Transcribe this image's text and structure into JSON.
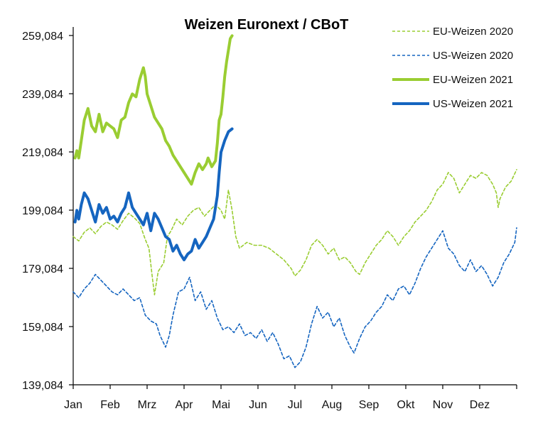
{
  "chart_data": {
    "type": "line",
    "title": "Weizen Euronext / CBoT",
    "xlabel": "",
    "ylabel": "",
    "x_ticks": [
      "Jan",
      "Feb",
      "Mrz",
      "Apr",
      "Mai",
      "Jun",
      "Jul",
      "Aug",
      "Sep",
      "Okt",
      "Nov",
      "Dez"
    ],
    "x_range": [
      0,
      12
    ],
    "y_ticks": [
      "259,084",
      "239,084",
      "219,084",
      "199,084",
      "179,084",
      "159,084",
      "139,084"
    ],
    "ylim": [
      139.084,
      263
    ],
    "grid": false,
    "legend_position": "top-right",
    "series": [
      {
        "name": "EU-Weizen 2020",
        "color": "#9acd32",
        "style": "dashed",
        "width": 1.6,
        "points": [
          [
            0.0,
            190.0
          ],
          [
            0.15,
            188.5
          ],
          [
            0.3,
            191.5
          ],
          [
            0.45,
            193.0
          ],
          [
            0.6,
            191.0
          ],
          [
            0.75,
            193.5
          ],
          [
            0.9,
            195.0
          ],
          [
            1.05,
            194.0
          ],
          [
            1.2,
            192.5
          ],
          [
            1.35,
            195.5
          ],
          [
            1.5,
            198.0
          ],
          [
            1.65,
            196.5
          ],
          [
            1.8,
            194.5
          ],
          [
            1.95,
            189.0
          ],
          [
            2.05,
            186.0
          ],
          [
            2.15,
            175.0
          ],
          [
            2.2,
            170.0
          ],
          [
            2.3,
            178.0
          ],
          [
            2.45,
            181.0
          ],
          [
            2.55,
            190.0
          ],
          [
            2.65,
            192.0
          ],
          [
            2.8,
            196.0
          ],
          [
            2.95,
            194.0
          ],
          [
            3.1,
            197.0
          ],
          [
            3.25,
            199.0
          ],
          [
            3.4,
            200.0
          ],
          [
            3.55,
            197.0
          ],
          [
            3.7,
            199.0
          ],
          [
            3.85,
            201.0
          ],
          [
            4.0,
            199.0
          ],
          [
            4.1,
            196.0
          ],
          [
            4.2,
            206.0
          ],
          [
            4.3,
            199.0
          ],
          [
            4.4,
            190.0
          ],
          [
            4.5,
            186.0
          ],
          [
            4.7,
            188.0
          ],
          [
            4.9,
            187.0
          ],
          [
            5.1,
            187.0
          ],
          [
            5.3,
            186.0
          ],
          [
            5.5,
            184.0
          ],
          [
            5.7,
            182.0
          ],
          [
            5.9,
            179.0
          ],
          [
            6.0,
            176.5
          ],
          [
            6.15,
            178.5
          ],
          [
            6.3,
            182.0
          ],
          [
            6.45,
            187.0
          ],
          [
            6.6,
            189.0
          ],
          [
            6.75,
            187.0
          ],
          [
            6.9,
            184.0
          ],
          [
            7.05,
            186.0
          ],
          [
            7.2,
            182.0
          ],
          [
            7.35,
            183.0
          ],
          [
            7.5,
            181.0
          ],
          [
            7.65,
            178.0
          ],
          [
            7.75,
            177.0
          ],
          [
            7.9,
            181.0
          ],
          [
            8.05,
            184.0
          ],
          [
            8.2,
            187.0
          ],
          [
            8.35,
            189.0
          ],
          [
            8.5,
            192.0
          ],
          [
            8.65,
            190.0
          ],
          [
            8.8,
            187.0
          ],
          [
            8.95,
            190.0
          ],
          [
            9.1,
            192.0
          ],
          [
            9.25,
            195.0
          ],
          [
            9.4,
            197.0
          ],
          [
            9.55,
            199.0
          ],
          [
            9.7,
            202.0
          ],
          [
            9.85,
            206.0
          ],
          [
            10.0,
            208.0
          ],
          [
            10.15,
            212.0
          ],
          [
            10.3,
            210.0
          ],
          [
            10.45,
            205.0
          ],
          [
            10.6,
            208.0
          ],
          [
            10.75,
            211.0
          ],
          [
            10.9,
            210.0
          ],
          [
            11.05,
            212.0
          ],
          [
            11.2,
            211.0
          ],
          [
            11.35,
            208.0
          ],
          [
            11.45,
            205.0
          ],
          [
            11.5,
            200.0
          ],
          [
            11.55,
            203.0
          ],
          [
            11.7,
            207.0
          ],
          [
            11.85,
            209.0
          ],
          [
            12.0,
            213.0
          ]
        ]
      },
      {
        "name": "US-Weizen 2020",
        "color": "#1565c0",
        "style": "dashed",
        "width": 1.6,
        "points": [
          [
            0.0,
            171.0
          ],
          [
            0.15,
            169.0
          ],
          [
            0.3,
            172.0
          ],
          [
            0.45,
            174.0
          ],
          [
            0.6,
            177.0
          ],
          [
            0.75,
            175.0
          ],
          [
            0.9,
            173.0
          ],
          [
            1.05,
            171.0
          ],
          [
            1.2,
            170.0
          ],
          [
            1.35,
            172.0
          ],
          [
            1.5,
            170.0
          ],
          [
            1.65,
            168.0
          ],
          [
            1.8,
            169.0
          ],
          [
            1.95,
            163.0
          ],
          [
            2.1,
            161.0
          ],
          [
            2.25,
            160.0
          ],
          [
            2.35,
            156.0
          ],
          [
            2.5,
            152.0
          ],
          [
            2.6,
            156.0
          ],
          [
            2.7,
            163.0
          ],
          [
            2.85,
            171.0
          ],
          [
            3.0,
            172.0
          ],
          [
            3.15,
            176.0
          ],
          [
            3.3,
            168.0
          ],
          [
            3.45,
            171.0
          ],
          [
            3.6,
            165.0
          ],
          [
            3.75,
            168.0
          ],
          [
            3.9,
            162.0
          ],
          [
            4.05,
            158.0
          ],
          [
            4.2,
            159.0
          ],
          [
            4.35,
            157.0
          ],
          [
            4.5,
            160.0
          ],
          [
            4.65,
            156.0
          ],
          [
            4.8,
            157.0
          ],
          [
            4.95,
            155.0
          ],
          [
            5.1,
            158.0
          ],
          [
            5.25,
            154.0
          ],
          [
            5.4,
            157.0
          ],
          [
            5.55,
            153.0
          ],
          [
            5.7,
            148.0
          ],
          [
            5.85,
            149.0
          ],
          [
            6.0,
            145.0
          ],
          [
            6.15,
            147.0
          ],
          [
            6.3,
            152.0
          ],
          [
            6.45,
            160.0
          ],
          [
            6.6,
            166.0
          ],
          [
            6.75,
            162.0
          ],
          [
            6.9,
            164.0
          ],
          [
            7.05,
            159.0
          ],
          [
            7.2,
            162.0
          ],
          [
            7.35,
            156.0
          ],
          [
            7.5,
            152.0
          ],
          [
            7.6,
            150.0
          ],
          [
            7.75,
            155.0
          ],
          [
            7.9,
            159.0
          ],
          [
            8.05,
            161.0
          ],
          [
            8.2,
            164.0
          ],
          [
            8.35,
            166.0
          ],
          [
            8.5,
            170.0
          ],
          [
            8.65,
            168.0
          ],
          [
            8.8,
            172.0
          ],
          [
            8.95,
            173.0
          ],
          [
            9.1,
            170.0
          ],
          [
            9.25,
            174.0
          ],
          [
            9.4,
            179.0
          ],
          [
            9.55,
            183.0
          ],
          [
            9.7,
            186.0
          ],
          [
            9.85,
            189.0
          ],
          [
            10.0,
            192.0
          ],
          [
            10.15,
            186.0
          ],
          [
            10.3,
            184.0
          ],
          [
            10.45,
            180.0
          ],
          [
            10.6,
            178.0
          ],
          [
            10.75,
            182.0
          ],
          [
            10.9,
            178.0
          ],
          [
            11.05,
            180.0
          ],
          [
            11.2,
            177.0
          ],
          [
            11.35,
            173.0
          ],
          [
            11.5,
            176.0
          ],
          [
            11.65,
            181.0
          ],
          [
            11.8,
            184.0
          ],
          [
            11.95,
            188.0
          ],
          [
            12.0,
            193.0
          ]
        ]
      },
      {
        "name": "EU-Weizen 2021",
        "color": "#9acd32",
        "style": "solid",
        "width": 4,
        "points": [
          [
            0.05,
            217.0
          ],
          [
            0.1,
            219.5
          ],
          [
            0.15,
            217.0
          ],
          [
            0.22,
            223.0
          ],
          [
            0.3,
            230.0
          ],
          [
            0.4,
            234.0
          ],
          [
            0.5,
            228.0
          ],
          [
            0.6,
            226.0
          ],
          [
            0.7,
            232.0
          ],
          [
            0.8,
            226.0
          ],
          [
            0.9,
            229.0
          ],
          [
            1.0,
            228.0
          ],
          [
            1.1,
            227.0
          ],
          [
            1.2,
            224.0
          ],
          [
            1.3,
            230.0
          ],
          [
            1.4,
            231.0
          ],
          [
            1.5,
            236.0
          ],
          [
            1.6,
            239.0
          ],
          [
            1.7,
            238.0
          ],
          [
            1.8,
            244.0
          ],
          [
            1.9,
            248.0
          ],
          [
            1.95,
            245.0
          ],
          [
            2.0,
            239.0
          ],
          [
            2.1,
            235.0
          ],
          [
            2.2,
            231.0
          ],
          [
            2.3,
            229.0
          ],
          [
            2.4,
            227.0
          ],
          [
            2.5,
            223.0
          ],
          [
            2.6,
            221.0
          ],
          [
            2.7,
            218.0
          ],
          [
            2.8,
            216.0
          ],
          [
            2.9,
            214.0
          ],
          [
            3.0,
            212.0
          ],
          [
            3.1,
            210.0
          ],
          [
            3.2,
            208.0
          ],
          [
            3.3,
            212.0
          ],
          [
            3.4,
            215.0
          ],
          [
            3.5,
            213.0
          ],
          [
            3.6,
            215.0
          ],
          [
            3.65,
            217.0
          ],
          [
            3.75,
            214.0
          ],
          [
            3.85,
            216.0
          ],
          [
            3.9,
            222.0
          ],
          [
            3.95,
            230.0
          ],
          [
            4.0,
            232.0
          ],
          [
            4.05,
            238.0
          ],
          [
            4.1,
            245.0
          ],
          [
            4.15,
            250.0
          ],
          [
            4.2,
            254.0
          ],
          [
            4.25,
            258.0
          ],
          [
            4.3,
            259.0
          ]
        ]
      },
      {
        "name": "US-Weizen 2021",
        "color": "#1565c0",
        "style": "solid",
        "width": 4,
        "points": [
          [
            0.05,
            195.0
          ],
          [
            0.1,
            199.0
          ],
          [
            0.15,
            196.0
          ],
          [
            0.22,
            201.0
          ],
          [
            0.3,
            205.0
          ],
          [
            0.4,
            203.0
          ],
          [
            0.5,
            199.0
          ],
          [
            0.6,
            195.0
          ],
          [
            0.7,
            201.0
          ],
          [
            0.8,
            198.0
          ],
          [
            0.9,
            200.0
          ],
          [
            1.0,
            196.0
          ],
          [
            1.1,
            197.0
          ],
          [
            1.2,
            195.0
          ],
          [
            1.3,
            198.0
          ],
          [
            1.4,
            200.0
          ],
          [
            1.5,
            205.0
          ],
          [
            1.6,
            200.0
          ],
          [
            1.7,
            198.0
          ],
          [
            1.8,
            196.0
          ],
          [
            1.9,
            194.0
          ],
          [
            2.0,
            198.0
          ],
          [
            2.1,
            192.0
          ],
          [
            2.2,
            198.0
          ],
          [
            2.3,
            196.0
          ],
          [
            2.4,
            193.0
          ],
          [
            2.5,
            190.0
          ],
          [
            2.6,
            189.0
          ],
          [
            2.7,
            185.0
          ],
          [
            2.8,
            187.0
          ],
          [
            2.9,
            184.0
          ],
          [
            3.0,
            182.0
          ],
          [
            3.1,
            184.0
          ],
          [
            3.2,
            185.0
          ],
          [
            3.3,
            189.0
          ],
          [
            3.4,
            186.0
          ],
          [
            3.5,
            188.0
          ],
          [
            3.6,
            190.0
          ],
          [
            3.7,
            193.0
          ],
          [
            3.8,
            196.0
          ],
          [
            3.9,
            204.0
          ],
          [
            3.95,
            212.0
          ],
          [
            4.0,
            219.0
          ],
          [
            4.1,
            223.0
          ],
          [
            4.2,
            226.0
          ],
          [
            4.3,
            227.0
          ]
        ]
      }
    ]
  }
}
